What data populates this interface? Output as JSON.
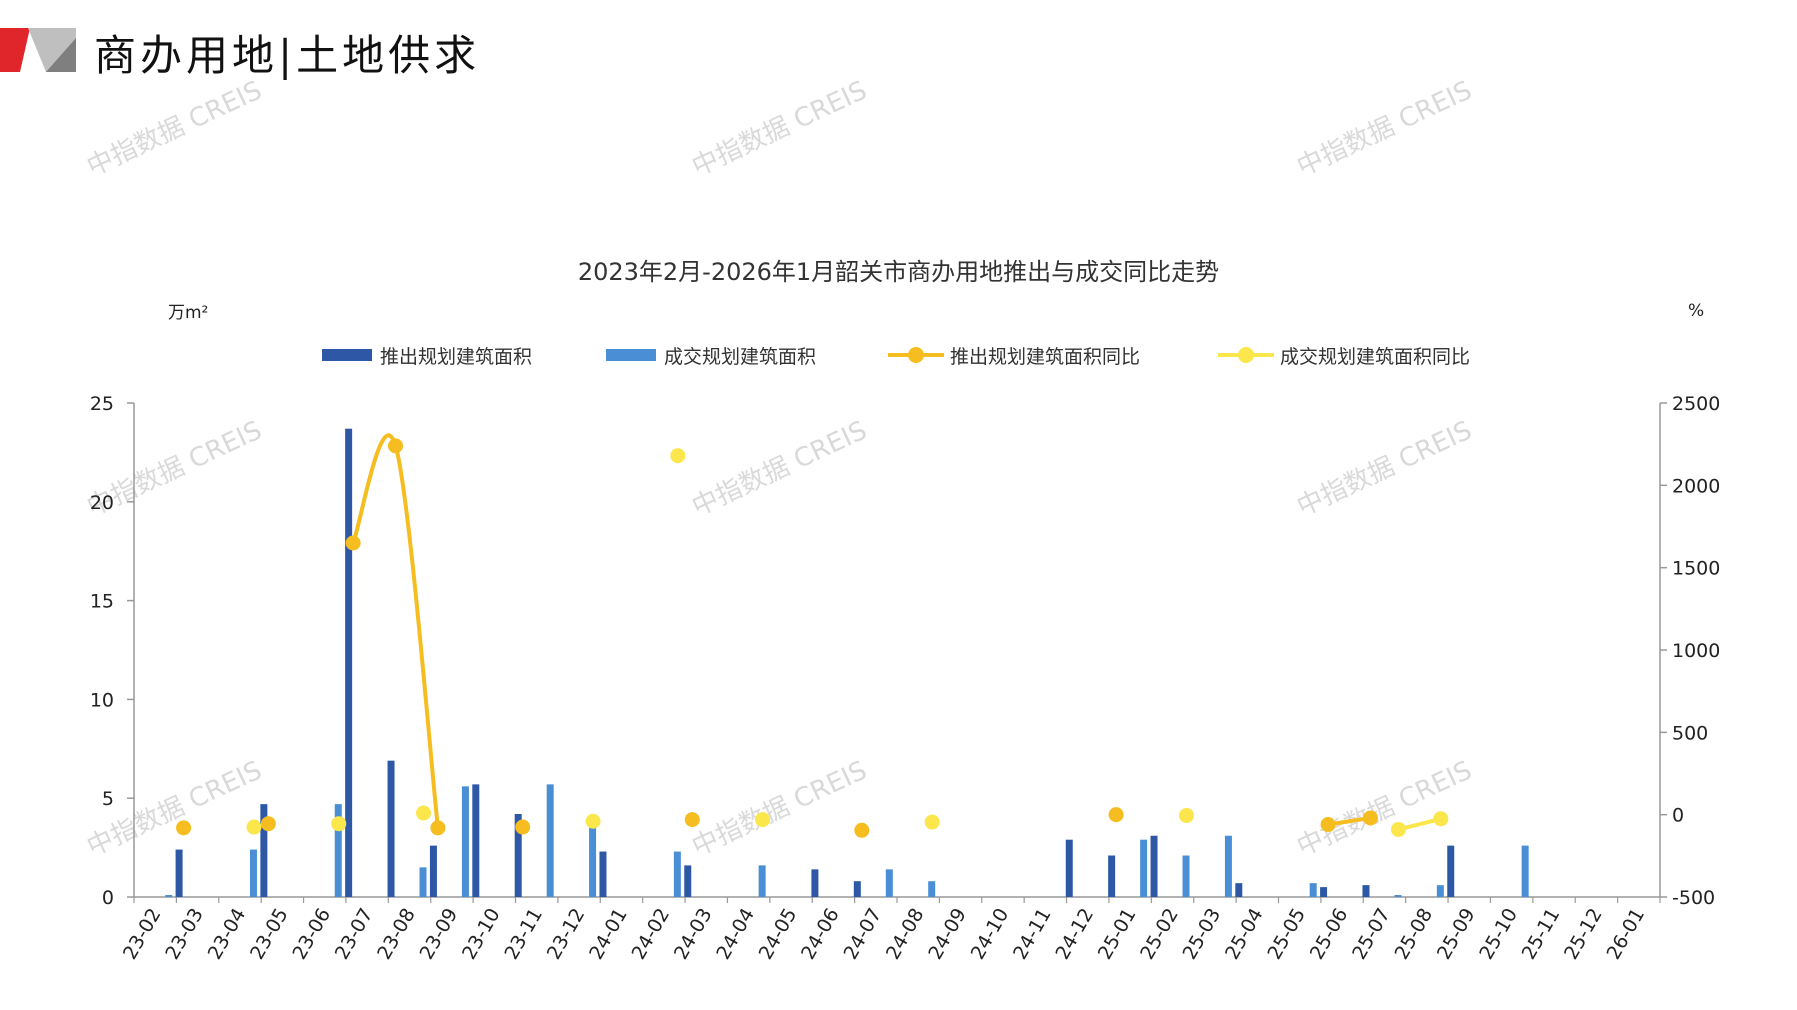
{
  "header": {
    "title": "商办用地|土地供求"
  },
  "watermark_text": "中指数据 CREIS",
  "colors": {
    "bar_launch": "#2e58a6",
    "bar_deal": "#4a8fd6",
    "line_launch": "#f5bd1f",
    "line_deal": "#fbe64b",
    "axis": "#999999",
    "logo_red": "#e0262b",
    "logo_gray": "#bfbfbf"
  },
  "chart_data": {
    "type": "bar",
    "title": "2023年2月-2026年1月韶关市商办用地推出与成交同比走势",
    "ylabel": "万m²",
    "y2label": "%",
    "ylim": [
      0,
      25
    ],
    "y2lim": [
      -500,
      2500
    ],
    "yticks": [
      0,
      5,
      10,
      15,
      20,
      25
    ],
    "y2ticks": [
      -500,
      0,
      500,
      1000,
      1500,
      2000,
      2500
    ],
    "legend_position": "top",
    "grid": false,
    "categories": [
      "23-02",
      "23-03",
      "23-04",
      "23-05",
      "23-06",
      "23-07",
      "23-08",
      "23-09",
      "23-10",
      "23-11",
      "23-12",
      "24-01",
      "24-02",
      "24-03",
      "24-04",
      "24-05",
      "24-06",
      "24-07",
      "24-08",
      "24-09",
      "24-10",
      "24-11",
      "24-12",
      "25-01",
      "25-02",
      "25-03",
      "25-04",
      "25-05",
      "25-06",
      "25-07",
      "25-08",
      "25-09",
      "25-10",
      "25-11",
      "25-12",
      "26-01"
    ],
    "series": [
      {
        "name": "推出规划建筑面积",
        "type": "bar",
        "axis": "left",
        "values": [
          0,
          2.4,
          0,
          4.7,
          0,
          23.7,
          6.9,
          2.6,
          5.7,
          4.2,
          0,
          2.3,
          0,
          1.6,
          0,
          0,
          1.4,
          0.8,
          0,
          0,
          0,
          0,
          2.9,
          2.1,
          3.1,
          0,
          0.7,
          0,
          0.5,
          0.6,
          0,
          2.6,
          0,
          0,
          0,
          0
        ]
      },
      {
        "name": "成交规划建筑面积",
        "type": "bar",
        "axis": "left",
        "values": [
          0.1,
          0,
          2.4,
          0,
          4.7,
          0,
          1.5,
          5.6,
          0,
          5.7,
          3.8,
          0,
          2.3,
          0,
          1.6,
          0,
          0,
          1.4,
          0.8,
          0,
          0,
          0,
          0,
          2.9,
          2.1,
          3.1,
          0,
          0.7,
          0,
          0.1,
          0.6,
          0,
          2.6,
          0,
          0,
          0
        ]
      },
      {
        "name": "推出规划建筑面积同比",
        "type": "line",
        "axis": "right",
        "values": [
          null,
          -80,
          null,
          -55,
          null,
          1650,
          2240,
          -80,
          null,
          -75,
          null,
          null,
          null,
          -30,
          null,
          null,
          null,
          -95,
          null,
          null,
          null,
          null,
          null,
          0,
          null,
          null,
          null,
          null,
          -60,
          -20,
          null,
          null,
          null,
          null,
          null,
          null
        ]
      },
      {
        "name": "成交规划建筑面积同比",
        "type": "line",
        "axis": "right",
        "values": [
          null,
          null,
          -75,
          null,
          -55,
          null,
          10,
          null,
          null,
          null,
          -40,
          null,
          2180,
          null,
          -30,
          null,
          null,
          null,
          -45,
          null,
          null,
          null,
          null,
          null,
          -5,
          null,
          null,
          null,
          null,
          -90,
          -25,
          null,
          null,
          null,
          null,
          null
        ]
      }
    ]
  }
}
